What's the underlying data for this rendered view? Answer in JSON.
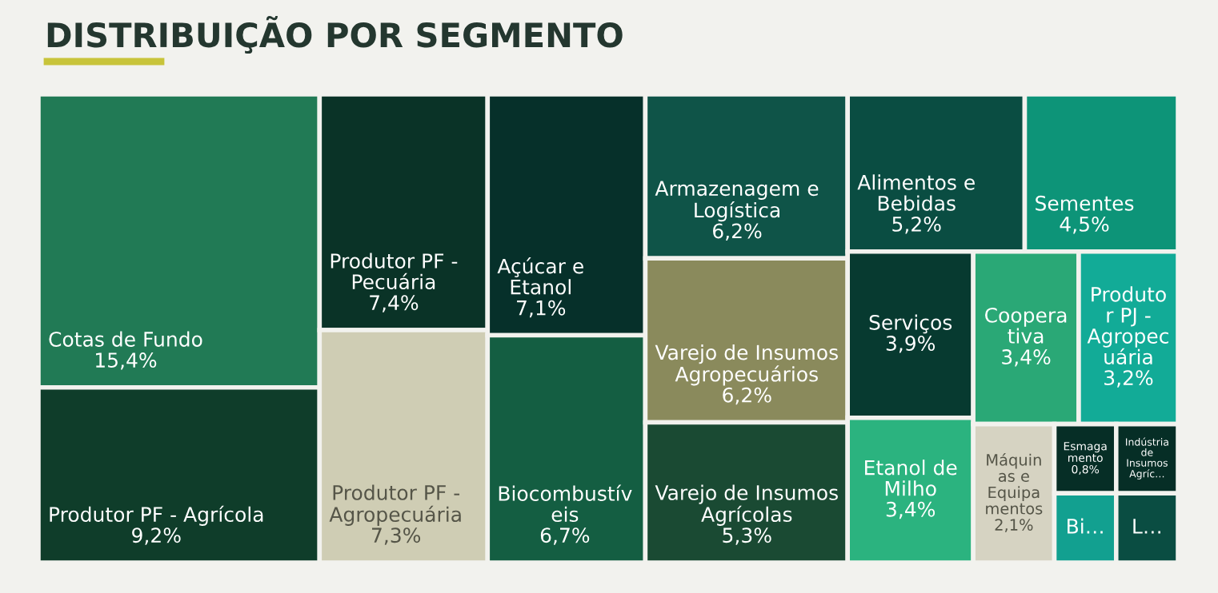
{
  "chart_data": {
    "type": "other",
    "title": "DISTRIBUIÇÃO POR SEGMENTO",
    "categories": [
      "Cotas de Fundo",
      "Produtor PF - Agrícola",
      "Produtor  PF - Pecuária",
      "Produtor PF - Agropecuária",
      "Açúcar e Etanol",
      "Biocombustíveis",
      "Armazenagem e Logística",
      "Varejo de Insumos Agropecuários",
      "Varejo de Insumos Agrícolas",
      "Alimentos e Bebidas",
      "Sementes",
      "Serviços",
      "Etanol de Milho",
      "Cooperativa",
      "Produtor PJ - Agropecuária",
      "Máquinas e Equipamentos",
      "Esmagamento",
      "Indústria de Insumos Agríc…",
      "Bi…",
      "L…"
    ],
    "values": [
      15.4,
      9.2,
      7.4,
      7.3,
      7.1,
      6.7,
      6.2,
      6.2,
      5.3,
      5.2,
      4.5,
      3.9,
      3.4,
      3.4,
      3.2,
      2.1,
      0.8,
      null,
      null,
      null
    ],
    "value_labels": [
      "15,4%",
      "9,2%",
      "7,4%",
      "7,3%",
      "7,1%",
      "6,7%",
      "6,2%",
      "6,2%",
      "5,3%",
      "5,2%",
      "4,5%",
      "3,9%",
      "3,4%",
      "3,4%",
      "3,2%",
      "2,1%",
      "0,8%",
      null,
      null,
      null
    ],
    "colors": [
      "#217a55",
      "#0f3d2a",
      "#0a3327",
      "#cfcdb4",
      "#06302a",
      "#145e42",
      "#0f5448",
      "#8a8a5c",
      "#1a4a33",
      "#0a4d42",
      "#0d9478",
      "#073a30",
      "#2bb37f",
      "#2aa876",
      "#12ab97",
      "#d6d3c2",
      "#062e26",
      "#062e26",
      "#12a090",
      "#0a4d42"
    ]
  }
}
